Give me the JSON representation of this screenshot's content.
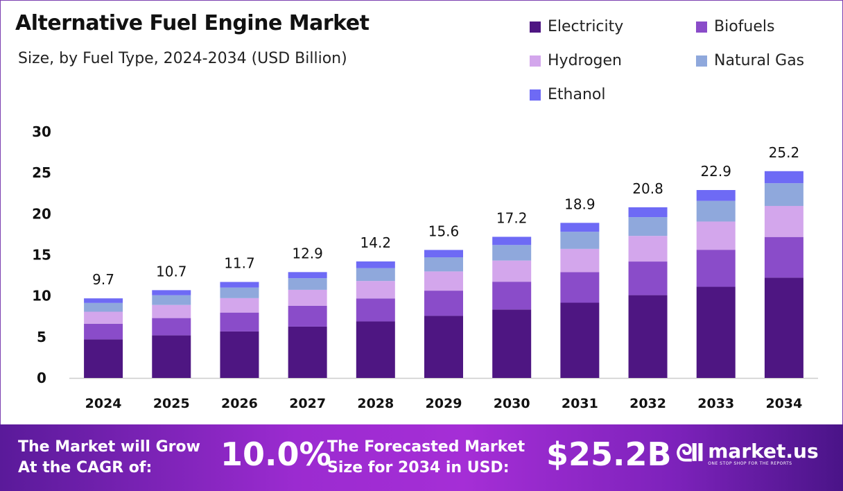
{
  "chart_data": {
    "type": "bar",
    "stacked": true,
    "title": "Alternative Fuel Engine Market",
    "subtitle": "Size, by Fuel Type, 2024-2034 (USD Billion)",
    "categories": [
      "2024",
      "2025",
      "2026",
      "2027",
      "2028",
      "2029",
      "2030",
      "2031",
      "2032",
      "2033",
      "2034"
    ],
    "totals": [
      "9.7",
      "10.7",
      "11.7",
      "12.9",
      "14.2",
      "15.6",
      "17.2",
      "18.9",
      "20.8",
      "22.9",
      "25.2"
    ],
    "series": [
      {
        "name": "Electricity",
        "color": "#4e1682",
        "values": [
          4.7,
          5.19,
          5.67,
          6.26,
          6.89,
          7.57,
          8.34,
          9.17,
          10.09,
          11.11,
          12.22
        ]
      },
      {
        "name": "Biofuels",
        "color": "#8a4cc9",
        "values": [
          1.91,
          2.11,
          2.3,
          2.54,
          2.8,
          3.07,
          3.39,
          3.72,
          4.1,
          4.51,
          4.96
        ]
      },
      {
        "name": "Hydrogen",
        "color": "#d3a6ec",
        "values": [
          1.46,
          1.6,
          1.76,
          1.94,
          2.13,
          2.34,
          2.58,
          2.84,
          3.12,
          3.44,
          3.78
        ]
      },
      {
        "name": "Natural Gas",
        "color": "#8fa8dc",
        "values": [
          1.07,
          1.18,
          1.29,
          1.42,
          1.56,
          1.72,
          1.89,
          2.08,
          2.29,
          2.52,
          2.77
        ]
      },
      {
        "name": "Ethanol",
        "color": "#6e6af5",
        "values": [
          0.56,
          0.62,
          0.68,
          0.74,
          0.82,
          0.9,
          1.0,
          1.09,
          1.2,
          1.32,
          1.47
        ]
      }
    ],
    "yticks": [
      "0",
      "5",
      "10",
      "15",
      "20",
      "25",
      "30"
    ],
    "ylim": [
      0,
      30
    ],
    "grid": false,
    "legend": "top-right",
    "xlabel": "",
    "ylabel": ""
  },
  "footer": {
    "cagr_label": "The Market will Grow At the CAGR of:",
    "cagr_value": "10.0%",
    "forecast_label": "The Forecasted Market Size for 2034 in USD:",
    "forecast_value": "$25.2B",
    "brand": "market.us",
    "tagline": "ONE STOP SHOP FOR THE REPORTS"
  }
}
